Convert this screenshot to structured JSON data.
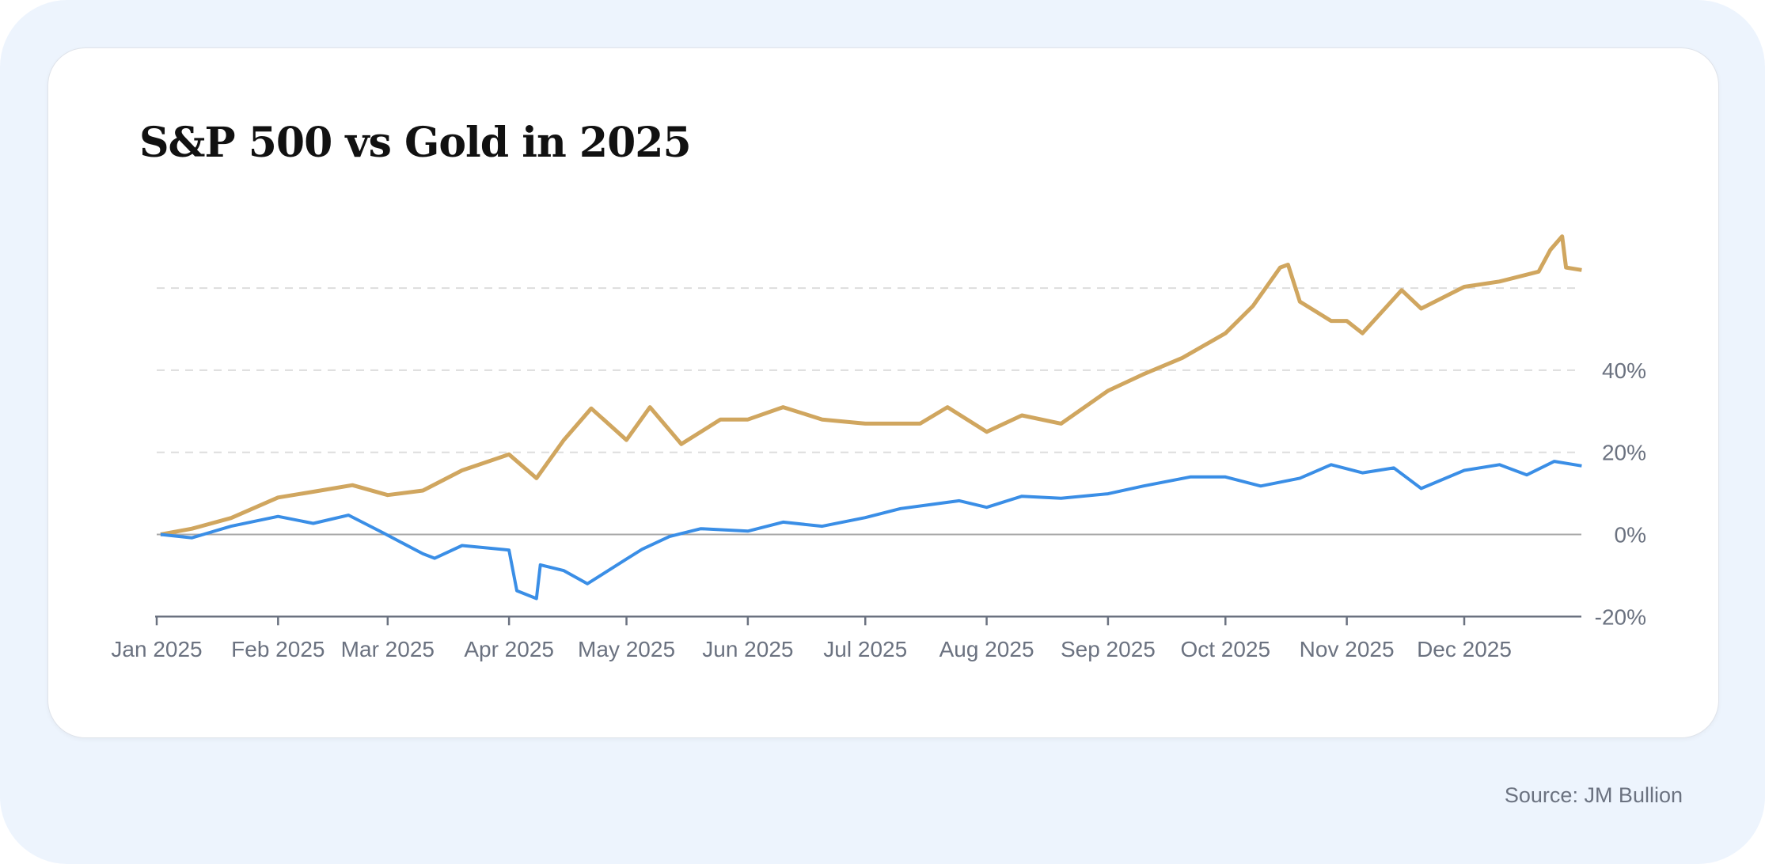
{
  "title": "S&P 500 vs Gold in 2025",
  "source": "Source: JM Bullion",
  "colors": {
    "gold": "#d0a65f",
    "sp500": "#3a8ee6",
    "axis": "#6b7280",
    "grid": "#dddddd",
    "background": "#edf4fd"
  },
  "chart_data": {
    "type": "line",
    "title": "S&P 500 vs Gold in 2025",
    "xlabel": "",
    "ylabel": "",
    "x_ticks": [
      "Jan 2025",
      "Feb 2025",
      "Mar 2025",
      "Apr 2025",
      "May 2025",
      "Jun 2025",
      "Jul 2025",
      "Aug 2025",
      "Sep 2025",
      "Oct 2025",
      "Nov 2025",
      "Dec 2025"
    ],
    "y_ticks": [
      "-20%",
      "0%",
      "20%",
      "40%"
    ],
    "ylim": [
      -20,
      80
    ],
    "xlim": [
      "2025-01-01",
      "2025-12-31"
    ],
    "y_axis_position": "right",
    "grid": "horizontal dashed",
    "legend": "none",
    "series": [
      {
        "color": "#d0a65f",
        "points": [
          [
            "2025-01-02",
            0
          ],
          [
            "2025-01-10",
            1.4
          ],
          [
            "2025-01-20",
            4
          ],
          [
            "2025-02-01",
            9
          ],
          [
            "2025-02-10",
            10.4
          ],
          [
            "2025-02-20",
            12
          ],
          [
            "2025-03-01",
            9.6
          ],
          [
            "2025-03-10",
            10.7
          ],
          [
            "2025-03-20",
            15.6
          ],
          [
            "2025-04-01",
            19.5
          ],
          [
            "2025-04-08",
            13.7
          ],
          [
            "2025-04-15",
            23
          ],
          [
            "2025-04-22",
            30.7
          ],
          [
            "2025-05-01",
            23
          ],
          [
            "2025-05-07",
            31
          ],
          [
            "2025-05-15",
            22
          ],
          [
            "2025-05-25",
            28
          ],
          [
            "2025-06-01",
            28
          ],
          [
            "2025-06-10",
            31
          ],
          [
            "2025-06-20",
            28
          ],
          [
            "2025-07-01",
            27
          ],
          [
            "2025-07-15",
            27
          ],
          [
            "2025-07-22",
            31
          ],
          [
            "2025-08-01",
            25
          ],
          [
            "2025-08-10",
            29
          ],
          [
            "2025-08-20",
            27
          ],
          [
            "2025-09-01",
            35
          ],
          [
            "2025-09-10",
            39
          ],
          [
            "2025-09-20",
            43
          ],
          [
            "2025-10-01",
            49
          ],
          [
            "2025-10-08",
            55.6
          ],
          [
            "2025-10-15",
            65
          ],
          [
            "2025-10-17",
            65.7
          ],
          [
            "2025-10-20",
            56.7
          ],
          [
            "2025-10-28",
            52
          ],
          [
            "2025-11-01",
            52
          ],
          [
            "2025-11-05",
            49
          ],
          [
            "2025-11-15",
            59.5
          ],
          [
            "2025-11-20",
            55
          ],
          [
            "2025-12-01",
            60.3
          ],
          [
            "2025-12-10",
            61.6
          ],
          [
            "2025-12-20",
            64
          ],
          [
            "2025-12-23",
            69.3
          ],
          [
            "2025-12-26",
            72.6
          ],
          [
            "2025-12-27",
            65
          ],
          [
            "2025-12-31",
            64.4
          ]
        ]
      },
      {
        "color": "#3a8ee6",
        "points": [
          [
            "2025-01-02",
            0
          ],
          [
            "2025-01-10",
            -0.8
          ],
          [
            "2025-01-20",
            2
          ],
          [
            "2025-02-01",
            4.4
          ],
          [
            "2025-02-10",
            2.7
          ],
          [
            "2025-02-19",
            4.7
          ],
          [
            "2025-02-28",
            0.3
          ],
          [
            "2025-03-10",
            -4.7
          ],
          [
            "2025-03-13",
            -5.8
          ],
          [
            "2025-03-20",
            -2.7
          ],
          [
            "2025-04-01",
            -3.8
          ],
          [
            "2025-04-03",
            -13.7
          ],
          [
            "2025-04-08",
            -15.6
          ],
          [
            "2025-04-09",
            -7.4
          ],
          [
            "2025-04-15",
            -8.8
          ],
          [
            "2025-04-21",
            -12
          ],
          [
            "2025-05-01",
            -6
          ],
          [
            "2025-05-05",
            -3.6
          ],
          [
            "2025-05-12",
            -0.5
          ],
          [
            "2025-05-20",
            1.4
          ],
          [
            "2025-06-01",
            0.8
          ],
          [
            "2025-06-10",
            3
          ],
          [
            "2025-06-20",
            2
          ],
          [
            "2025-07-01",
            4.1
          ],
          [
            "2025-07-10",
            6.3
          ],
          [
            "2025-07-25",
            8.2
          ],
          [
            "2025-08-01",
            6.6
          ],
          [
            "2025-08-10",
            9.3
          ],
          [
            "2025-08-20",
            8.8
          ],
          [
            "2025-09-01",
            9.9
          ],
          [
            "2025-09-10",
            11.8
          ],
          [
            "2025-09-22",
            14
          ],
          [
            "2025-10-01",
            14
          ],
          [
            "2025-10-10",
            11.8
          ],
          [
            "2025-10-20",
            13.7
          ],
          [
            "2025-10-28",
            17
          ],
          [
            "2025-11-05",
            15
          ],
          [
            "2025-11-13",
            16.2
          ],
          [
            "2025-11-20",
            11.2
          ],
          [
            "2025-12-01",
            15.6
          ],
          [
            "2025-12-10",
            17
          ],
          [
            "2025-12-17",
            14.5
          ],
          [
            "2025-12-24",
            17.8
          ],
          [
            "2025-12-31",
            16.7
          ]
        ]
      }
    ]
  }
}
